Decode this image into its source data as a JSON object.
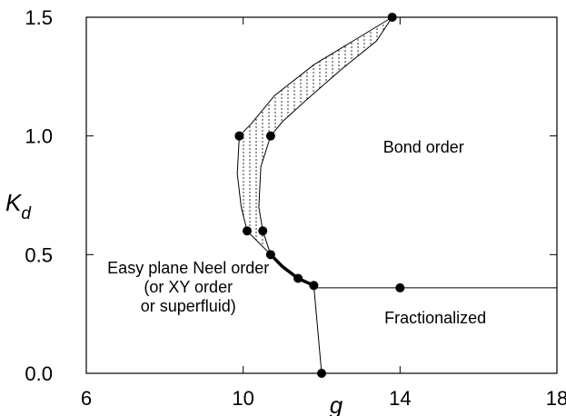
{
  "chart_data": {
    "type": "scatter",
    "xlim": [
      6,
      18
    ],
    "ylim": [
      0.0,
      1.5
    ],
    "x_ticks": [
      "6",
      "10",
      "14",
      "18"
    ],
    "y_ticks": [
      "0.0",
      "0.5",
      "1.0",
      "1.5"
    ],
    "xlabel": "g",
    "ylabel_main": "K",
    "ylabel_sub": "d",
    "grid": false,
    "legend": "none",
    "points": [
      {
        "x": 13.8,
        "y": 1.5
      },
      {
        "x": 9.9,
        "y": 1.0
      },
      {
        "x": 10.7,
        "y": 1.0
      },
      {
        "x": 10.1,
        "y": 0.6
      },
      {
        "x": 10.5,
        "y": 0.6
      },
      {
        "x": 10.7,
        "y": 0.5
      },
      {
        "x": 11.4,
        "y": 0.4
      },
      {
        "x": 11.8,
        "y": 0.37
      },
      {
        "x": 14.0,
        "y": 0.36
      },
      {
        "x": 12.0,
        "y": 0.0
      }
    ],
    "boundaries": {
      "outer_left": [
        [
          13.8,
          1.5
        ],
        [
          12.9,
          1.41
        ],
        [
          11.8,
          1.3
        ],
        [
          10.8,
          1.17
        ],
        [
          10.2,
          1.05
        ],
        [
          9.9,
          1.0
        ],
        [
          9.85,
          0.84
        ],
        [
          9.95,
          0.7
        ],
        [
          10.1,
          0.6
        ],
        [
          10.7,
          0.5
        ]
      ],
      "inner_right": [
        [
          13.8,
          1.5
        ],
        [
          13.4,
          1.4
        ],
        [
          12.5,
          1.28
        ],
        [
          11.6,
          1.15
        ],
        [
          11.0,
          1.06
        ],
        [
          10.7,
          1.0
        ],
        [
          10.45,
          0.87
        ],
        [
          10.4,
          0.7
        ],
        [
          10.5,
          0.6
        ],
        [
          10.7,
          0.5
        ]
      ],
      "thick_transition": [
        [
          10.7,
          0.5
        ],
        [
          11.0,
          0.45
        ],
        [
          11.4,
          0.4
        ],
        [
          11.8,
          0.37
        ]
      ],
      "horizontal_line": [
        [
          11.8,
          0.36
        ],
        [
          18.0,
          0.36
        ]
      ],
      "vertical_line": [
        [
          11.8,
          0.37
        ],
        [
          12.0,
          0.0
        ]
      ]
    },
    "regions": [
      {
        "label": "Bond order",
        "x": 14.6,
        "y": 0.93
      },
      {
        "label": "Easy plane Neel order",
        "x": 8.6,
        "y": 0.42
      },
      {
        "label": "(or XY order",
        "x": 8.6,
        "y": 0.34
      },
      {
        "label": "or superfluid)",
        "x": 8.6,
        "y": 0.26
      },
      {
        "label": "Fractionalized",
        "x": 14.9,
        "y": 0.21
      }
    ]
  }
}
